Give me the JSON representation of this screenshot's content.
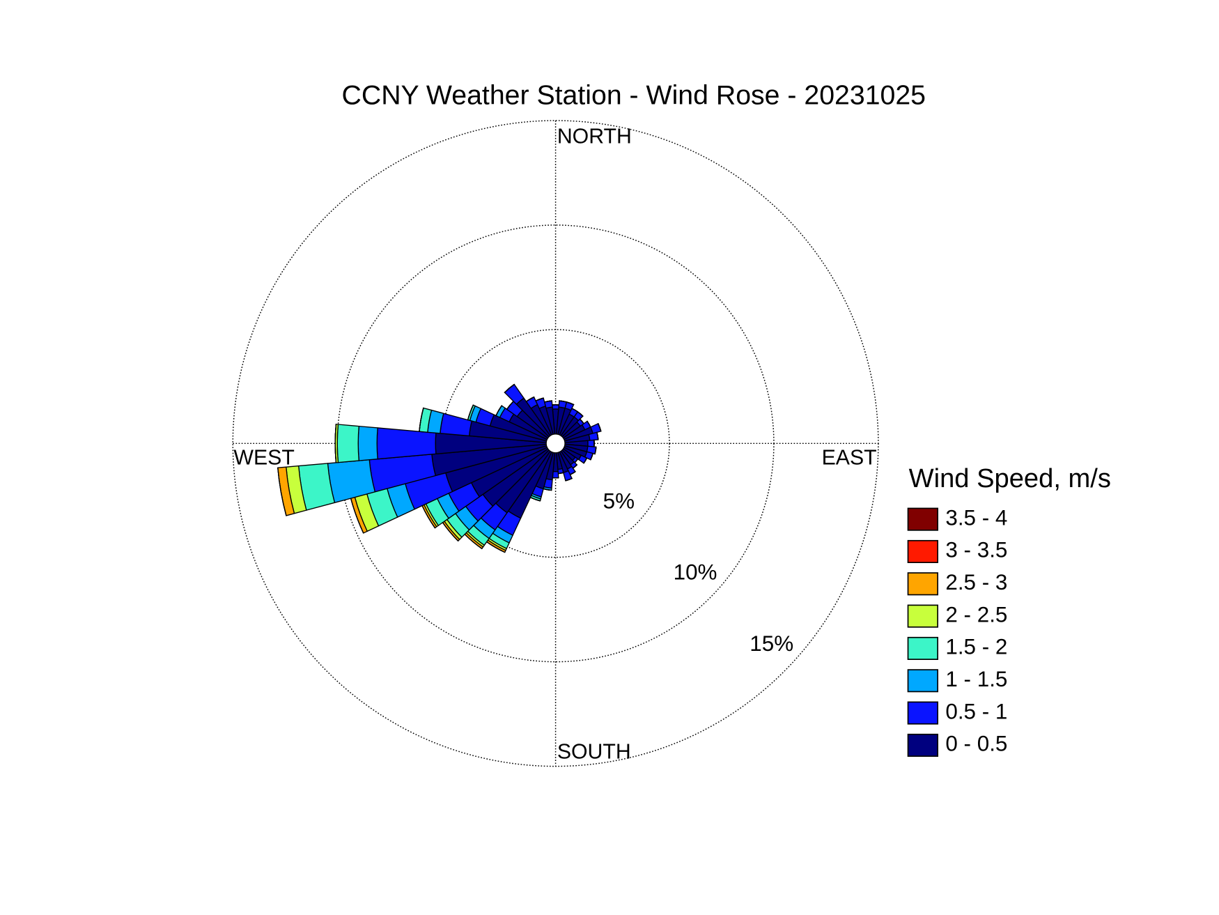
{
  "chart_data": {
    "type": "windrose",
    "title": "CCNY Weather Station - Wind Rose - 20231025",
    "legend_title": "Wind Speed, m/s",
    "direction_labels": [
      "NORTH",
      "EAST",
      "SOUTH",
      "WEST"
    ],
    "directions": [
      0,
      10,
      20,
      30,
      40,
      50,
      60,
      70,
      80,
      90,
      100,
      110,
      120,
      130,
      140,
      150,
      160,
      170,
      180,
      190,
      200,
      210,
      220,
      230,
      240,
      250,
      260,
      270,
      280,
      290,
      300,
      310,
      320,
      330,
      340,
      350
    ],
    "rlim": [
      0,
      15
    ],
    "rticks": [
      {
        "value": 5,
        "label": "5%"
      },
      {
        "value": 10,
        "label": "10%"
      },
      {
        "value": 15,
        "label": "15%"
      }
    ],
    "grid": true,
    "series": [
      {
        "name": "0 - 0.5",
        "color": "#00007f",
        "values": [
          1.2,
          1.3,
          1.3,
          1.1,
          1.1,
          1.0,
          1.1,
          1.4,
          1.2,
          1.1,
          1.1,
          1.1,
          0.9,
          0.7,
          0.8,
          0.9,
          1.0,
          0.8,
          0.9,
          1.3,
          1.8,
          3.5,
          3.6,
          3.8,
          4.0,
          5.0,
          5.5,
          5.3,
          3.7,
          2.8,
          2.0,
          1.8,
          2.2,
          1.6,
          1.4,
          1.3
        ]
      },
      {
        "name": "0.5 - 1",
        "color": "#0a14ff",
        "values": [
          0.2,
          0.3,
          0.3,
          0.3,
          0.3,
          0.2,
          0.3,
          0.4,
          0.4,
          0.3,
          0.4,
          0.3,
          0.3,
          0.15,
          0.2,
          0.3,
          0.4,
          0.2,
          0.3,
          0.4,
          0.4,
          0.9,
          1.0,
          1.0,
          1.2,
          2.0,
          3.0,
          2.8,
          1.4,
          0.7,
          0.5,
          0.6,
          0.8,
          0.4,
          0.4,
          0.3
        ]
      },
      {
        "name": "1 - 1.5",
        "color": "#00a8ff",
        "values": [
          0,
          0,
          0,
          0,
          0,
          0,
          0,
          0,
          0,
          0,
          0,
          0,
          0,
          0,
          0,
          0,
          0,
          0,
          0,
          0.1,
          0.1,
          0.4,
          0.5,
          0.6,
          0.6,
          0.9,
          2.0,
          0.9,
          0.6,
          0.3,
          0.2,
          0,
          0,
          0,
          0,
          0
        ]
      },
      {
        "name": "1.5 - 2",
        "color": "#3cf5c8",
        "values": [
          0,
          0,
          0,
          0,
          0,
          0,
          0,
          0,
          0,
          0,
          0,
          0,
          0,
          0,
          0,
          0,
          0,
          0,
          0,
          0,
          0.1,
          0.3,
          0.4,
          0.5,
          0.6,
          1.0,
          1.4,
          1.0,
          0.4,
          0.1,
          0,
          0,
          0,
          0,
          0,
          0
        ]
      },
      {
        "name": "2 - 2.5",
        "color": "#c8ff3c",
        "values": [
          0,
          0,
          0,
          0,
          0,
          0,
          0,
          0,
          0,
          0,
          0,
          0,
          0,
          0,
          0,
          0,
          0,
          0,
          0,
          0,
          0,
          0.1,
          0.1,
          0.15,
          0.1,
          0.6,
          0.6,
          0.1,
          0,
          0,
          0,
          0,
          0,
          0,
          0,
          0
        ]
      },
      {
        "name": "2.5 - 3",
        "color": "#ffa500",
        "values": [
          0,
          0,
          0,
          0,
          0,
          0,
          0,
          0,
          0,
          0,
          0,
          0,
          0,
          0,
          0,
          0,
          0,
          0,
          0,
          0,
          0,
          0.1,
          0.1,
          0.1,
          0.1,
          0.2,
          0.4,
          0,
          0,
          0,
          0,
          0,
          0,
          0,
          0,
          0
        ]
      },
      {
        "name": "3 - 3.5",
        "color": "#ff1a00",
        "values": [
          0,
          0,
          0,
          0,
          0,
          0,
          0,
          0,
          0,
          0,
          0,
          0,
          0,
          0,
          0,
          0,
          0,
          0,
          0,
          0,
          0,
          0,
          0,
          0,
          0,
          0,
          0,
          0,
          0,
          0,
          0,
          0,
          0,
          0,
          0,
          0
        ]
      },
      {
        "name": "3.5 - 4",
        "color": "#800000",
        "values": [
          0,
          0,
          0,
          0,
          0,
          0,
          0,
          0,
          0,
          0,
          0,
          0,
          0,
          0,
          0,
          0,
          0,
          0,
          0,
          0,
          0,
          0,
          0,
          0,
          0,
          0,
          0,
          0,
          0,
          0,
          0,
          0,
          0,
          0,
          0,
          0
        ]
      }
    ]
  }
}
